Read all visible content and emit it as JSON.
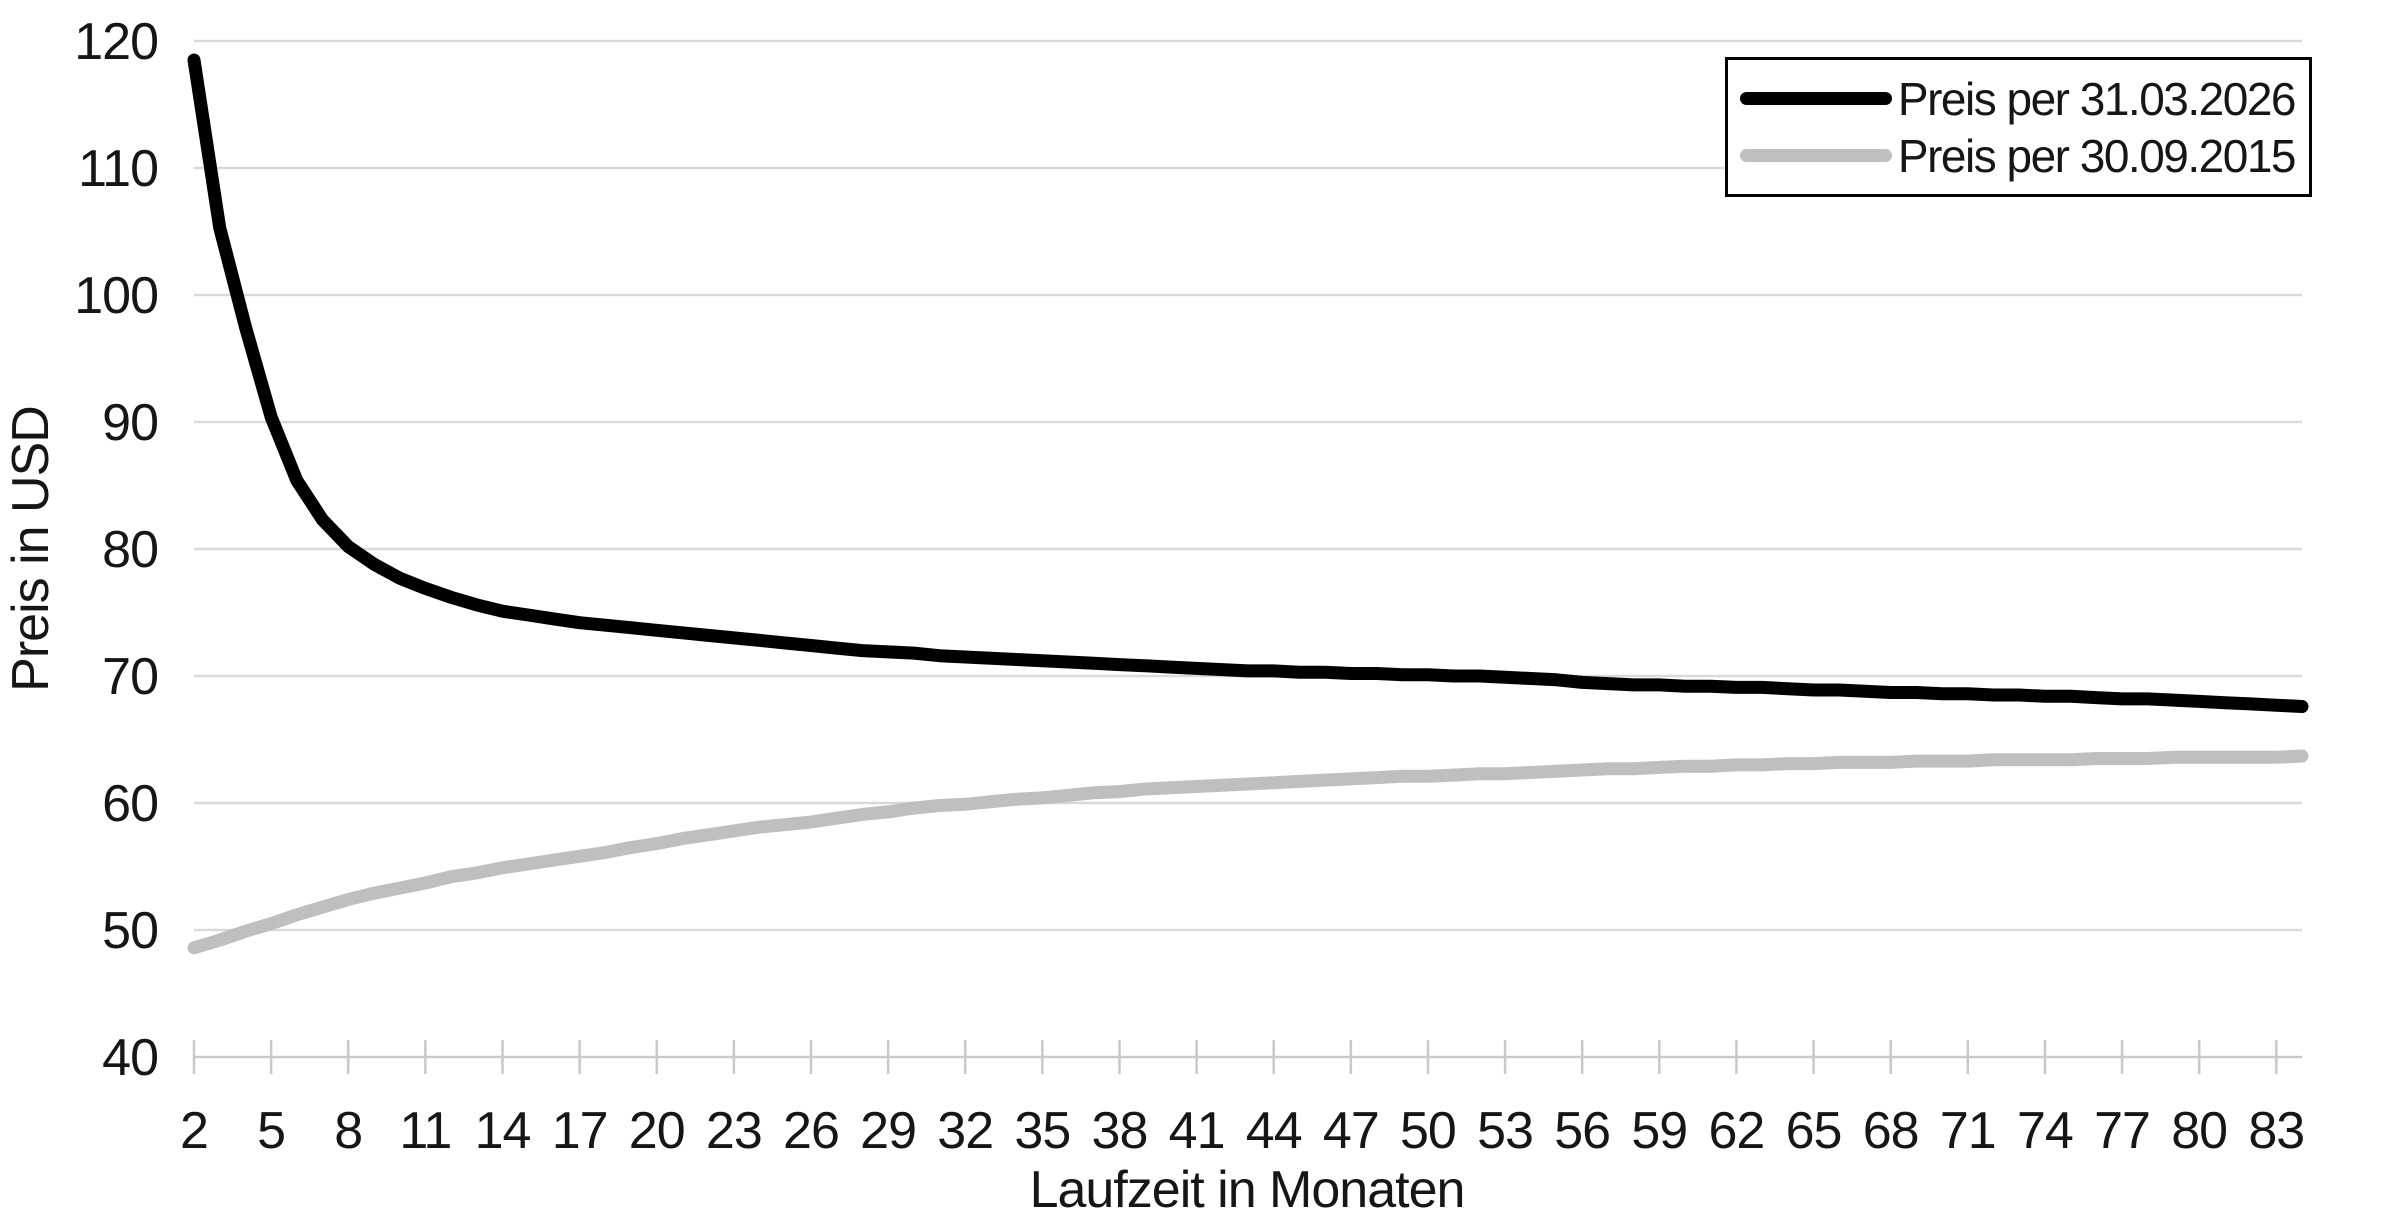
{
  "colors": {
    "background": "#FFFFFF",
    "gridline": "#D9D9D9",
    "axis_line": "#C9C9C9",
    "tick_mark": "#C9C9C9",
    "text": "#161616",
    "legend_border": "#000000",
    "series_black": "#000000",
    "series_gray": "#BFBFBF"
  },
  "chart_data": {
    "type": "line",
    "title": "",
    "xlabel": "Laufzeit in Monaten",
    "ylabel": "Preis in USD",
    "xlim": [
      2,
      84
    ],
    "ylim": [
      40,
      120
    ],
    "grid": "horizontal",
    "legend_position": "top-right",
    "x_months": [
      2,
      3,
      4,
      5,
      6,
      7,
      8,
      9,
      10,
      11,
      12,
      13,
      14,
      15,
      16,
      17,
      18,
      19,
      20,
      21,
      22,
      23,
      24,
      25,
      26,
      27,
      28,
      29,
      30,
      31,
      32,
      33,
      34,
      35,
      36,
      37,
      38,
      39,
      40,
      41,
      42,
      43,
      44,
      45,
      46,
      47,
      48,
      49,
      50,
      51,
      52,
      53,
      54,
      55,
      56,
      57,
      58,
      59,
      60,
      61,
      62,
      63,
      64,
      65,
      66,
      67,
      68,
      69,
      70,
      71,
      72,
      73,
      74,
      75,
      76,
      77,
      78,
      79,
      80,
      81,
      82,
      83,
      84
    ],
    "x_tick_labels": [
      "2",
      "5",
      "8",
      "11",
      "14",
      "17",
      "20",
      "23",
      "26",
      "29",
      "32",
      "35",
      "38",
      "41",
      "44",
      "47",
      "50",
      "53",
      "56",
      "59",
      "62",
      "65",
      "68",
      "71",
      "74",
      "77",
      "80",
      "83"
    ],
    "x_tick_months": [
      2,
      5,
      8,
      11,
      14,
      17,
      20,
      23,
      26,
      29,
      32,
      35,
      38,
      41,
      44,
      47,
      50,
      53,
      56,
      59,
      62,
      65,
      68,
      71,
      74,
      77,
      80,
      83
    ],
    "y_ticks": [
      40,
      50,
      60,
      70,
      80,
      90,
      100,
      110,
      120
    ],
    "series": [
      {
        "name": "Preis per 31.03.2026",
        "color": "#000000",
        "values": [
          118.5,
          105.3,
          97.5,
          90.4,
          85.4,
          82.3,
          80.2,
          78.8,
          77.7,
          76.9,
          76.2,
          75.6,
          75.1,
          74.8,
          74.5,
          74.2,
          74.0,
          73.8,
          73.6,
          73.4,
          73.2,
          73.0,
          72.8,
          72.6,
          72.4,
          72.2,
          72.0,
          71.9,
          71.8,
          71.6,
          71.5,
          71.4,
          71.3,
          71.2,
          71.1,
          71.0,
          70.9,
          70.8,
          70.7,
          70.6,
          70.5,
          70.4,
          70.4,
          70.3,
          70.3,
          70.2,
          70.2,
          70.1,
          70.1,
          70.0,
          70.0,
          69.9,
          69.8,
          69.7,
          69.5,
          69.4,
          69.3,
          69.3,
          69.2,
          69.2,
          69.1,
          69.1,
          69.0,
          68.9,
          68.9,
          68.8,
          68.7,
          68.7,
          68.6,
          68.6,
          68.5,
          68.5,
          68.4,
          68.4,
          68.3,
          68.2,
          68.2,
          68.1,
          68.0,
          67.9,
          67.8,
          67.7,
          67.6
        ]
      },
      {
        "name": "Preis per 30.09.2015",
        "color": "#BFBFBF",
        "values": [
          48.6,
          49.2,
          49.9,
          50.5,
          51.2,
          51.8,
          52.4,
          52.9,
          53.3,
          53.7,
          54.2,
          54.5,
          54.9,
          55.2,
          55.5,
          55.8,
          56.1,
          56.5,
          56.8,
          57.2,
          57.5,
          57.8,
          58.1,
          58.3,
          58.5,
          58.8,
          59.1,
          59.3,
          59.6,
          59.8,
          59.9,
          60.1,
          60.3,
          60.4,
          60.6,
          60.8,
          60.9,
          61.1,
          61.2,
          61.3,
          61.4,
          61.5,
          61.6,
          61.7,
          61.8,
          61.9,
          62.0,
          62.1,
          62.1,
          62.2,
          62.3,
          62.3,
          62.4,
          62.5,
          62.6,
          62.7,
          62.7,
          62.8,
          62.9,
          62.9,
          63.0,
          63.0,
          63.1,
          63.1,
          63.2,
          63.2,
          63.2,
          63.3,
          63.3,
          63.3,
          63.4,
          63.4,
          63.4,
          63.4,
          63.5,
          63.5,
          63.5,
          63.6,
          63.6,
          63.6,
          63.6,
          63.6,
          63.7
        ]
      }
    ]
  }
}
